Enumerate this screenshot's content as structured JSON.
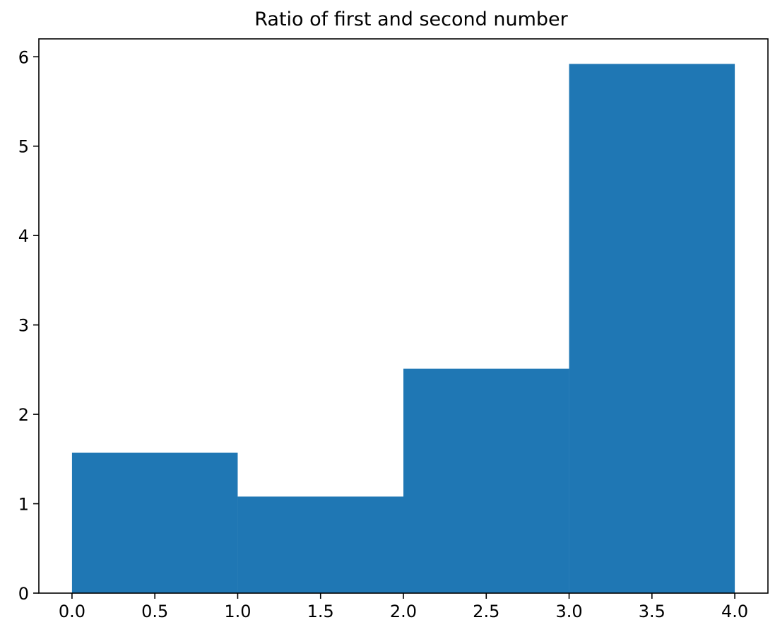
{
  "chart_data": {
    "type": "bar",
    "title": "Ratio of first and second number",
    "xlabel": "",
    "ylabel": "",
    "bins": [
      {
        "x0": 0.0,
        "x1": 1.0,
        "value": 1.57
      },
      {
        "x0": 1.0,
        "x1": 2.0,
        "value": 1.08
      },
      {
        "x0": 2.0,
        "x1": 3.0,
        "value": 2.51
      },
      {
        "x0": 3.0,
        "x1": 4.0,
        "value": 5.92
      }
    ],
    "xlim": [
      -0.2,
      4.2
    ],
    "ylim": [
      0,
      6.2
    ],
    "x_ticks": [
      "0.0",
      "0.5",
      "1.0",
      "1.5",
      "2.0",
      "2.5",
      "3.0",
      "3.5",
      "4.0"
    ],
    "y_ticks": [
      "0",
      "1",
      "2",
      "3",
      "4",
      "5",
      "6"
    ],
    "bar_color": "#1f77b4",
    "grid": false,
    "legend": "none"
  }
}
